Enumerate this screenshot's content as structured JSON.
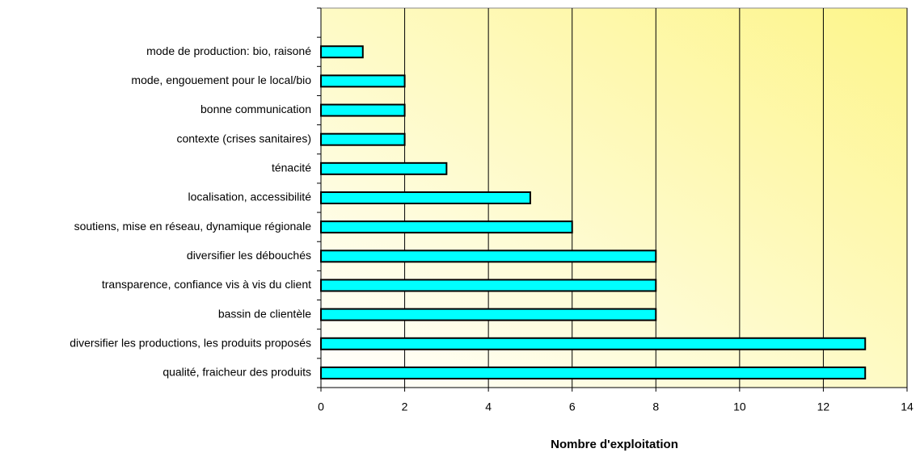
{
  "chart_data": {
    "type": "barh",
    "x_label": "Nombre d'exploitation",
    "categories": [
      "mode de production: bio, raisoné",
      "mode, engouement pour le local/bio",
      "bonne communication",
      "contexte (crises sanitaires)",
      "ténacité",
      "localisation, accessibilité",
      "soutiens, mise en réseau, dynamique régionale",
      "diversifier les débouchés",
      "transparence, confiance vis à vis du client",
      "bassin de clientèle",
      "diversifier les productions, les produits proposés",
      "qualité, fraicheur des produits"
    ],
    "values": [
      1,
      2,
      2,
      2,
      3,
      5,
      6,
      8,
      8,
      8,
      13,
      13
    ],
    "color": "#00ffff",
    "xlim": [
      0,
      14
    ],
    "xticks": [
      0,
      2,
      4,
      6,
      8,
      10,
      12,
      14
    ],
    "grid": true
  }
}
